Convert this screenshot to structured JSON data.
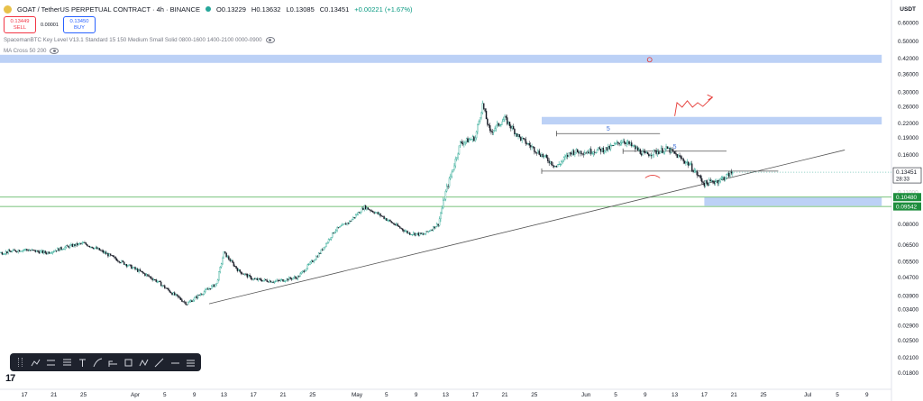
{
  "header": {
    "symbol": "GOAT / TetherUS PERPETUAL CONTRACT · 4h · BINANCE",
    "o": "O0.13229",
    "h": "H0.13632",
    "l": "L0.13085",
    "c": "C0.13451",
    "change": "+0.00221 (+1.67%)"
  },
  "trade": {
    "sell_price": "0.13449",
    "sell_label": "SELL",
    "spread": "0.00001",
    "buy_price": "0.13450",
    "buy_label": "BUY"
  },
  "indicators": [
    "SpacemanBTC Key Level V13.1 Standard 15 150 Medium Small Solid 0800-1600 1400-2100 0000-0900",
    "MA Cross 50 200"
  ],
  "currency": "USDT",
  "toolbar_icons": [
    "grip-icon",
    "zigzag-icon",
    "parallel-lines-icon",
    "fib-icon",
    "text-icon",
    "brush-icon",
    "long-position-icon",
    "rectangle-icon",
    "pattern-icon",
    "trend-line-icon",
    "horizontal-ray-icon",
    "settings-lines-icon"
  ],
  "colors": {
    "bull": "#089981",
    "bear": "#131722",
    "zone": "#8fb2f0",
    "level": "#4caf50",
    "trend": "#555555",
    "annot_red": "#e53935",
    "annot_blue": "#3d6fd8"
  },
  "chart_data": {
    "type": "candlestick",
    "y_scale": "log",
    "ylim": [
      0.0157,
      0.6475
    ],
    "yticks": [
      "0.60000",
      "0.50000",
      "0.42000",
      "0.36000",
      "0.30000",
      "0.26000",
      "0.22000",
      "0.19000",
      "0.16000",
      "0.13000",
      "0.11000",
      "0.08000",
      "0.06500",
      "0.05500",
      "0.04700",
      "0.03900",
      "0.03400",
      "0.02900",
      "0.02500",
      "0.02100",
      "0.01800"
    ],
    "ytick_values": [
      0.6,
      0.5,
      0.42,
      0.36,
      0.3,
      0.26,
      0.22,
      0.19,
      0.16,
      0.13,
      0.11,
      0.08,
      0.065,
      0.055,
      0.047,
      0.039,
      0.034,
      0.029,
      0.025,
      0.021,
      0.018
    ],
    "xticks": [
      "17",
      "21",
      "25",
      "Apr",
      "5",
      "9",
      "13",
      "17",
      "21",
      "25",
      "May",
      "5",
      "9",
      "13",
      "17",
      "21",
      "25",
      "Jun",
      "5",
      "9",
      "13",
      "17",
      "21",
      "25",
      "Jul",
      "5",
      "9"
    ],
    "xtick_days": [
      -15,
      -11,
      -7,
      0,
      4,
      8,
      12,
      16,
      20,
      24,
      30,
      34,
      38,
      42,
      46,
      50,
      54,
      61,
      65,
      69,
      73,
      77,
      81,
      85,
      91,
      95,
      99
    ],
    "price_path": [
      {
        "day": -36,
        "price": 0.058
      },
      {
        "day": -30,
        "price": 0.059
      },
      {
        "day": -26,
        "price": 0.057
      },
      {
        "day": -21,
        "price": 0.058
      },
      {
        "day": -18,
        "price": 0.06
      },
      {
        "day": -15,
        "price": 0.062
      },
      {
        "day": -12,
        "price": 0.06
      },
      {
        "day": -9,
        "price": 0.064
      },
      {
        "day": -7,
        "price": 0.066
      },
      {
        "day": -5,
        "price": 0.062
      },
      {
        "day": -2,
        "price": 0.055
      },
      {
        "day": 1,
        "price": 0.049
      },
      {
        "day": 3,
        "price": 0.045
      },
      {
        "day": 5,
        "price": 0.04
      },
      {
        "day": 7,
        "price": 0.036
      },
      {
        "day": 9,
        "price": 0.04
      },
      {
        "day": 11,
        "price": 0.044
      },
      {
        "day": 12,
        "price": 0.06
      },
      {
        "day": 14,
        "price": 0.05
      },
      {
        "day": 16,
        "price": 0.046
      },
      {
        "day": 19,
        "price": 0.045
      },
      {
        "day": 22,
        "price": 0.047
      },
      {
        "day": 25,
        "price": 0.06
      },
      {
        "day": 27,
        "price": 0.075
      },
      {
        "day": 29,
        "price": 0.082
      },
      {
        "day": 31,
        "price": 0.095
      },
      {
        "day": 33,
        "price": 0.088
      },
      {
        "day": 35,
        "price": 0.08
      },
      {
        "day": 37,
        "price": 0.073
      },
      {
        "day": 39,
        "price": 0.072
      },
      {
        "day": 41,
        "price": 0.08
      },
      {
        "day": 42,
        "price": 0.11
      },
      {
        "day": 43,
        "price": 0.14
      },
      {
        "day": 44,
        "price": 0.18
      },
      {
        "day": 46,
        "price": 0.19
      },
      {
        "day": 47,
        "price": 0.265
      },
      {
        "day": 48,
        "price": 0.2
      },
      {
        "day": 50,
        "price": 0.23
      },
      {
        "day": 52,
        "price": 0.19
      },
      {
        "day": 55,
        "price": 0.16
      },
      {
        "day": 57,
        "price": 0.142
      },
      {
        "day": 59,
        "price": 0.165
      },
      {
        "day": 61,
        "price": 0.165
      },
      {
        "day": 64,
        "price": 0.17
      },
      {
        "day": 66,
        "price": 0.185
      },
      {
        "day": 69,
        "price": 0.16
      },
      {
        "day": 72,
        "price": 0.17
      },
      {
        "day": 75,
        "price": 0.145
      },
      {
        "day": 77,
        "price": 0.12
      },
      {
        "day": 79,
        "price": 0.124
      },
      {
        "day": 81,
        "price": 0.135
      }
    ],
    "last_price": "0.13451",
    "countdown": "28:33",
    "level_labels": [
      {
        "label": "0.10480",
        "value": 0.1048
      },
      {
        "label": "0.09542",
        "value": 0.09542
      }
    ],
    "faded_label": "0.11000",
    "supply_zones": [
      {
        "from_day": -36,
        "to_day": 101,
        "low": 0.402,
        "high": 0.436
      },
      {
        "from_day": 55,
        "to_day": 101,
        "low": 0.217,
        "high": 0.234
      }
    ],
    "demand_zone": {
      "from_day": 77,
      "to_day": 101,
      "low": 0.096,
      "high": 0.105
    },
    "trendline": {
      "start_day": 10,
      "start_price": 0.036,
      "end_day": 96,
      "end_price": 0.168
    },
    "horizontal_rays": [
      {
        "from_day": 57,
        "to_day": 71,
        "price": 0.198,
        "label": "5"
      },
      {
        "from_day": 66,
        "to_day": 80,
        "price": 0.166,
        "label": "5"
      },
      {
        "from_day": 55,
        "to_day": 87,
        "price": 0.136
      }
    ]
  }
}
